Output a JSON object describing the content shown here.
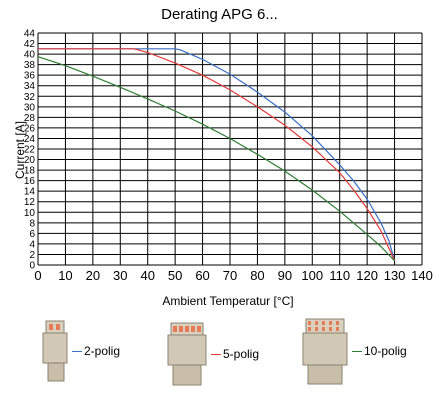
{
  "chart_data": {
    "type": "line",
    "title": "Derating APG 6...",
    "xlabel": "Ambient Temperatur [°C]",
    "ylabel": "Current [A]",
    "xlim": [
      0,
      140
    ],
    "ylim": [
      0,
      44
    ],
    "x_ticks": [
      0,
      10,
      20,
      30,
      40,
      50,
      60,
      70,
      80,
      90,
      100,
      110,
      120,
      130,
      140
    ],
    "y_ticks": [
      0,
      2,
      4,
      6,
      8,
      10,
      12,
      14,
      16,
      18,
      20,
      22,
      24,
      26,
      28,
      30,
      32,
      34,
      36,
      38,
      40,
      42,
      44
    ],
    "grid": true,
    "legend_position": "bottom",
    "series": [
      {
        "name": "2-polig",
        "color": "#3a6fc4",
        "icon": "2-pole-connector-icon",
        "x": [
          0,
          50,
          52,
          60,
          70,
          80,
          90,
          100,
          110,
          115,
          120,
          125,
          128,
          130
        ],
        "y": [
          41,
          41,
          40.8,
          39,
          36.2,
          32.8,
          29,
          24.5,
          19,
          16,
          12.5,
          8,
          4.5,
          0.8
        ]
      },
      {
        "name": "5-polig",
        "color": "#e23a3a",
        "icon": "5-pole-connector-icon",
        "x": [
          0,
          35,
          40,
          50,
          60,
          70,
          80,
          90,
          100,
          110,
          115,
          120,
          125,
          130
        ],
        "y": [
          41,
          41,
          40.3,
          38.3,
          36,
          33.2,
          30,
          26.5,
          22.4,
          17.5,
          14.3,
          10.7,
          6.5,
          0.8
        ]
      },
      {
        "name": "10-polig",
        "color": "#2e7d32",
        "icon": "10-pole-connector-icon",
        "x": [
          0,
          10,
          20,
          30,
          40,
          50,
          60,
          70,
          80,
          90,
          100,
          110,
          120,
          125,
          130
        ],
        "y": [
          39.5,
          37.8,
          35.8,
          33.7,
          31.5,
          29.2,
          26.7,
          24,
          21,
          17.8,
          14.2,
          10.2,
          5.8,
          3.5,
          0.8
        ]
      }
    ]
  }
}
